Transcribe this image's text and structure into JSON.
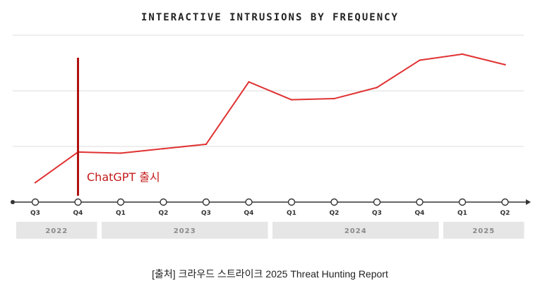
{
  "chart_data": {
    "type": "line",
    "title": "INTERACTIVE INTRUSIONS BY FREQUENCY",
    "categories": [
      "Q3",
      "Q4",
      "Q1",
      "Q2",
      "Q3",
      "Q4",
      "Q1",
      "Q2",
      "Q3",
      "Q4",
      "Q1",
      "Q2"
    ],
    "years": [
      {
        "label": "2022",
        "from": 0,
        "to": 1
      },
      {
        "label": "2023",
        "from": 2,
        "to": 5
      },
      {
        "label": "2024",
        "from": 6,
        "to": 9
      },
      {
        "label": "2025",
        "from": 10,
        "to": 11
      }
    ],
    "series": [
      {
        "name": "Interactive intrusions",
        "color": "#e03232",
        "values": [
          0.35,
          0.9,
          0.88,
          0.96,
          1.04,
          2.16,
          1.84,
          1.86,
          2.06,
          2.55,
          2.66,
          2.47
        ]
      }
    ],
    "ylim": [
      0,
      3
    ],
    "grid": true,
    "yticks_shown": false,
    "annotation": {
      "label": "ChatGPT 출시",
      "at_index": 1,
      "color": "#b01010",
      "text_color": "#c41a1a"
    }
  },
  "source_note": "[출처] 크라우드 스트라이크 2025 Threat Hunting Report",
  "colors": {
    "grid": "#dcdcdc",
    "axis": "#333333",
    "year_band": "#e6e6e6"
  }
}
